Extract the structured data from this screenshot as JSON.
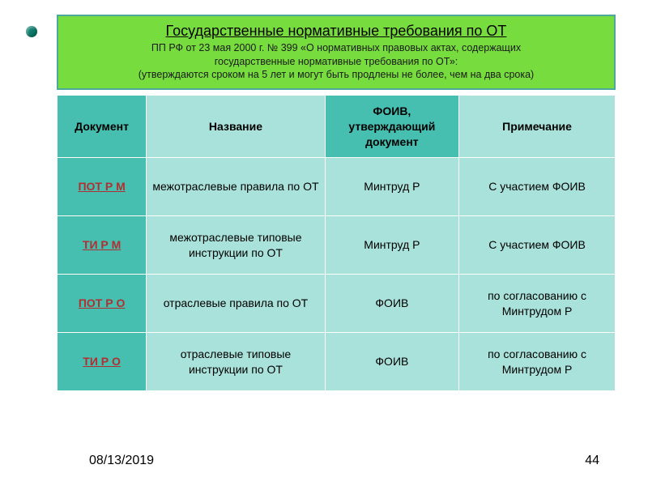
{
  "header": {
    "title": "Государственные нормативные требования по ОТ",
    "subtitle_line1": "ПП РФ от 23 мая 2000 г. № 399 «О нормативных правовых актах, содержащих",
    "subtitle_line2": "государственные нормативные требования по ОТ»:",
    "note": "(утверждаются сроком на 5 лет и могут быть продлены не более, чем на два срока)"
  },
  "table": {
    "headers": {
      "c1": "Документ",
      "c2": "Название",
      "c3": "ФОИВ, утверждающий документ",
      "c4": "Примечание"
    },
    "rows": [
      {
        "doc": "ПОТ  Р  М",
        "name": "межотраслевые правила по ОТ",
        "org": "Минтруд Р",
        "note": "С участием ФОИВ"
      },
      {
        "doc": "ТИ  Р  М",
        "name": "межотраслевые типовые инструкции по ОТ",
        "org": "Минтруд Р",
        "note": "С участием ФОИВ"
      },
      {
        "doc": "ПОТ  Р  О",
        "name": "отраслевые правила по ОТ",
        "org": "ФОИВ",
        "note": "по согласованию с Минтрудом Р"
      },
      {
        "doc": "ТИ  Р  О",
        "name": "отраслевые типовые инструкции по ОТ",
        "org": "ФОИВ",
        "note": "по согласованию с Минтрудом Р"
      }
    ]
  },
  "footer": {
    "date": "08/13/2019",
    "page": "44"
  },
  "colors": {
    "header_bg": "#77dd3f",
    "header_border": "#4fa89c",
    "th_dark": "#46beb0",
    "cell_light": "#a9e2da",
    "docid_text": "#b03030",
    "bullet": "#0a7a6a"
  }
}
